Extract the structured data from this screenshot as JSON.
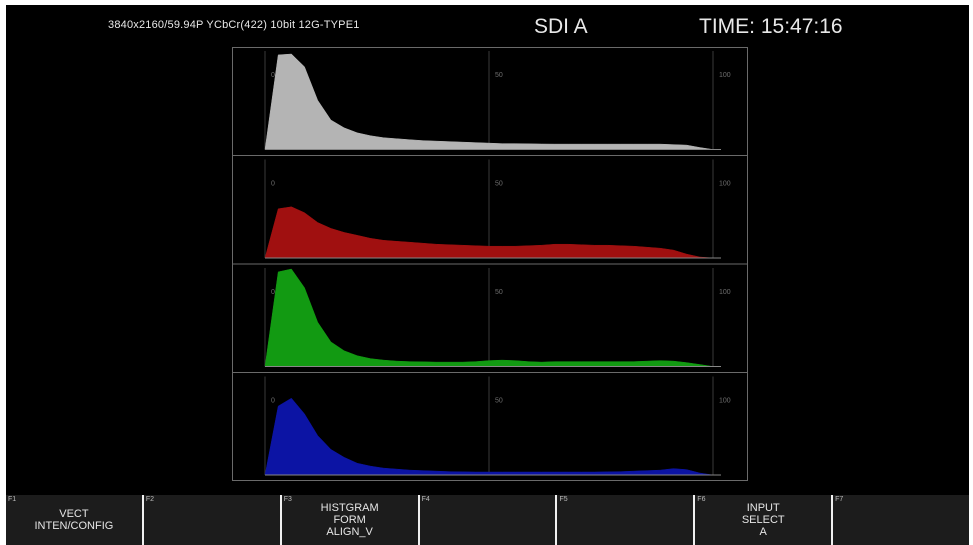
{
  "header": {
    "format": "3840x2160/59.94P YCbCr(422) 10bit 12G-TYPE1",
    "input": "SDI A",
    "time": "TIME: 15:47:16"
  },
  "histogram": {
    "scale_labels": [
      "0",
      "50",
      "100"
    ],
    "channels": [
      {
        "name": "Y",
        "color": "#b4b4b4",
        "levels": [
          0,
          0.96,
          0.97,
          0.84,
          0.5,
          0.3,
          0.22,
          0.17,
          0.14,
          0.12,
          0.11,
          0.1,
          0.09,
          0.085,
          0.08,
          0.075,
          0.07,
          0.065,
          0.06,
          0.06,
          0.058,
          0.056,
          0.055,
          0.055,
          0.055,
          0.055,
          0.055,
          0.055,
          0.055,
          0.055,
          0.055,
          0.05,
          0.045,
          0.02,
          0
        ]
      },
      {
        "name": "R",
        "color": "#a01010",
        "levels": [
          0,
          0.5,
          0.52,
          0.46,
          0.36,
          0.3,
          0.26,
          0.23,
          0.2,
          0.18,
          0.17,
          0.16,
          0.15,
          0.14,
          0.135,
          0.13,
          0.125,
          0.12,
          0.12,
          0.12,
          0.125,
          0.13,
          0.14,
          0.14,
          0.135,
          0.13,
          0.13,
          0.125,
          0.12,
          0.11,
          0.1,
          0.08,
          0.04,
          0.01,
          0
        ]
      },
      {
        "name": "G",
        "color": "#129a12",
        "levels": [
          0,
          0.96,
          0.99,
          0.8,
          0.45,
          0.25,
          0.16,
          0.11,
          0.08,
          0.065,
          0.055,
          0.05,
          0.048,
          0.045,
          0.045,
          0.045,
          0.05,
          0.06,
          0.065,
          0.06,
          0.05,
          0.045,
          0.05,
          0.05,
          0.05,
          0.05,
          0.05,
          0.05,
          0.05,
          0.055,
          0.06,
          0.055,
          0.04,
          0.02,
          0
        ]
      },
      {
        "name": "B",
        "color": "#0c14a4",
        "levels": [
          0,
          0.7,
          0.78,
          0.62,
          0.4,
          0.26,
          0.18,
          0.12,
          0.09,
          0.07,
          0.06,
          0.05,
          0.045,
          0.04,
          0.035,
          0.032,
          0.03,
          0.03,
          0.03,
          0.03,
          0.03,
          0.03,
          0.03,
          0.03,
          0.03,
          0.03,
          0.032,
          0.035,
          0.04,
          0.045,
          0.05,
          0.065,
          0.055,
          0.02,
          0
        ]
      }
    ]
  },
  "fkeys": [
    {
      "num": "F1",
      "lines": [
        "VECT",
        "INTEN/CONFIG"
      ]
    },
    {
      "num": "F2",
      "lines": []
    },
    {
      "num": "F3",
      "lines": [
        "HISTGRAM",
        "FORM",
        "ALIGN_V"
      ]
    },
    {
      "num": "F4",
      "lines": []
    },
    {
      "num": "F5",
      "lines": []
    },
    {
      "num": "F6",
      "lines": [
        "INPUT",
        "SELECT",
        "A"
      ]
    },
    {
      "num": "F7",
      "lines": []
    }
  ]
}
